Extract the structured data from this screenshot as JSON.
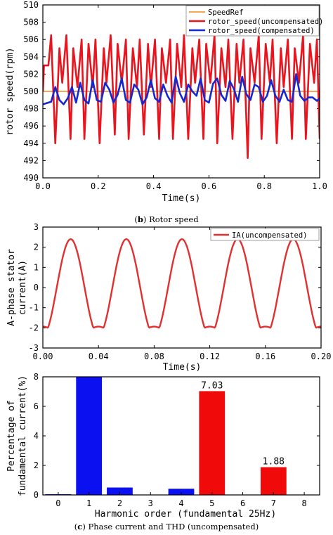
{
  "colors": {
    "speed_ref": "#f08c1e",
    "uncompensated": "#e8141e",
    "compensated": "#1428d2",
    "current": "#e03030",
    "bar_blue": "#0a10f0",
    "bar_red": "#f00a0a"
  },
  "captions": {
    "b_label": "b",
    "b_text": "Rotor speed",
    "c_label": "c",
    "c_text": "Phase current and THD (uncompensated)"
  },
  "chart_data": [
    {
      "type": "line",
      "xlabel": "Time(s)",
      "ylabel": "rotor speed(rpm)",
      "xlim": [
        0.0,
        1.0
      ],
      "ylim": [
        490,
        510
      ],
      "xticks": [
        "0.0",
        "0.2",
        "0.4",
        "0.6",
        "0.8",
        "1.0"
      ],
      "yticks": [
        "490",
        "492",
        "494",
        "496",
        "498",
        "500",
        "502",
        "504",
        "506",
        "508",
        "510"
      ],
      "legend_position": "top-right",
      "series": [
        {
          "name": "SpeedRef",
          "x": [
            0.0,
            1.0
          ],
          "y": [
            500,
            500
          ]
        },
        {
          "name": "rotor_speed(uncompensated)",
          "x": [
            0.0,
            0.004,
            0.02,
            0.03,
            0.045,
            0.06,
            0.07,
            0.085,
            0.1,
            0.11,
            0.125,
            0.14,
            0.15,
            0.165,
            0.18,
            0.19,
            0.205,
            0.22,
            0.23,
            0.245,
            0.26,
            0.27,
            0.285,
            0.3,
            0.31,
            0.325,
            0.34,
            0.35,
            0.365,
            0.38,
            0.39,
            0.405,
            0.42,
            0.43,
            0.445,
            0.46,
            0.47,
            0.485,
            0.5,
            0.51,
            0.525,
            0.54,
            0.55,
            0.565,
            0.58,
            0.59,
            0.605,
            0.62,
            0.63,
            0.645,
            0.66,
            0.67,
            0.685,
            0.7,
            0.71,
            0.725,
            0.74,
            0.75,
            0.765,
            0.78,
            0.79,
            0.805,
            0.82,
            0.83,
            0.845,
            0.86,
            0.87,
            0.885,
            0.9,
            0.91,
            0.925,
            0.94,
            0.95,
            0.965,
            0.98,
            0.99,
            1.0
          ],
          "y": [
            500,
            503,
            503,
            506.5,
            494,
            505,
            501,
            506.5,
            494.5,
            505,
            500.5,
            506,
            494.5,
            505.5,
            500.5,
            506,
            494,
            505,
            501,
            506.5,
            495,
            505.5,
            501,
            506,
            494.5,
            505,
            500.5,
            506,
            495,
            505.5,
            500.5,
            506,
            494.5,
            505,
            501,
            506,
            494.5,
            505.5,
            500.5,
            506.5,
            494.5,
            505,
            501,
            506,
            494.5,
            505.5,
            501,
            506.5,
            494,
            505,
            500.5,
            506,
            494.5,
            505.5,
            501,
            506,
            492.3,
            505,
            501,
            506.5,
            494.5,
            505.5,
            501,
            506,
            494,
            505,
            500.5,
            506,
            494.5,
            505,
            501,
            506.5,
            494.5,
            505.5,
            501,
            506,
            494.5
          ]
        },
        {
          "name": "rotor_speed(compensated)",
          "x": [
            0.0,
            0.03,
            0.045,
            0.06,
            0.075,
            0.09,
            0.105,
            0.12,
            0.135,
            0.15,
            0.165,
            0.18,
            0.195,
            0.21,
            0.225,
            0.24,
            0.255,
            0.27,
            0.285,
            0.3,
            0.315,
            0.33,
            0.345,
            0.36,
            0.375,
            0.39,
            0.405,
            0.42,
            0.435,
            0.45,
            0.465,
            0.48,
            0.495,
            0.51,
            0.525,
            0.54,
            0.555,
            0.57,
            0.585,
            0.6,
            0.615,
            0.63,
            0.645,
            0.66,
            0.675,
            0.69,
            0.705,
            0.72,
            0.735,
            0.75,
            0.765,
            0.78,
            0.795,
            0.81,
            0.825,
            0.84,
            0.855,
            0.87,
            0.885,
            0.9,
            0.915,
            0.93,
            0.945,
            0.96,
            0.975,
            0.99,
            1.0
          ],
          "y": [
            498.5,
            498.8,
            500.5,
            499,
            498.5,
            499.2,
            500.5,
            498.7,
            501,
            499,
            498.6,
            501.3,
            499,
            498.8,
            501,
            500.2,
            498.7,
            499.6,
            501.5,
            499,
            498.7,
            500.8,
            500.2,
            498.5,
            499.3,
            501.3,
            499.2,
            498.8,
            500.8,
            499.5,
            498.7,
            501.7,
            499.8,
            498.8,
            500.8,
            500,
            499.5,
            501.5,
            499,
            498.7,
            500.9,
            501.5,
            499.6,
            498.9,
            501.2,
            500.3,
            498.8,
            501.7,
            499.7,
            499,
            500.8,
            500.5,
            498.8,
            499.5,
            501.3,
            499.5,
            498.8,
            500.2,
            499,
            498.8,
            502,
            499.5,
            498.9,
            499.3,
            499.3,
            498.9,
            499.2
          ]
        }
      ]
    },
    {
      "type": "line",
      "xlabel": "Time(s)",
      "ylabel": "A-phase stator current(A)",
      "xlim": [
        0.0,
        0.2
      ],
      "ylim": [
        -3,
        3
      ],
      "xticks": [
        "0.00",
        "0.04",
        "0.08",
        "0.12",
        "0.16",
        "0.20"
      ],
      "yticks": [
        "-3",
        "-2",
        "-1",
        "0",
        "1",
        "2",
        "3"
      ],
      "legend_position": "top-right",
      "series": [
        {
          "name": "IA(uncompensated)",
          "frequency_hz": 25,
          "amplitude": 2.4
        }
      ]
    },
    {
      "type": "bar",
      "xlabel": "Harmonic order (fundamental 25Hz)",
      "ylabel": "Percentage of fundamental current(%)",
      "ylim": [
        0,
        8
      ],
      "yticks": [
        "0",
        "2",
        "4",
        "6",
        "8"
      ],
      "categories": [
        "0",
        "1",
        "2",
        "3",
        "4",
        "5",
        "6",
        "7",
        "8"
      ],
      "values": [
        0.05,
        8.0,
        0.5,
        0.02,
        0.42,
        7.03,
        0.02,
        1.88,
        0.02
      ],
      "bar_colors": [
        "blue",
        "blue",
        "blue",
        "blue",
        "blue",
        "red",
        "red",
        "red",
        "red"
      ],
      "data_labels": [
        "",
        "",
        "",
        "",
        "",
        "7.03",
        "",
        "1.88",
        ""
      ]
    }
  ]
}
